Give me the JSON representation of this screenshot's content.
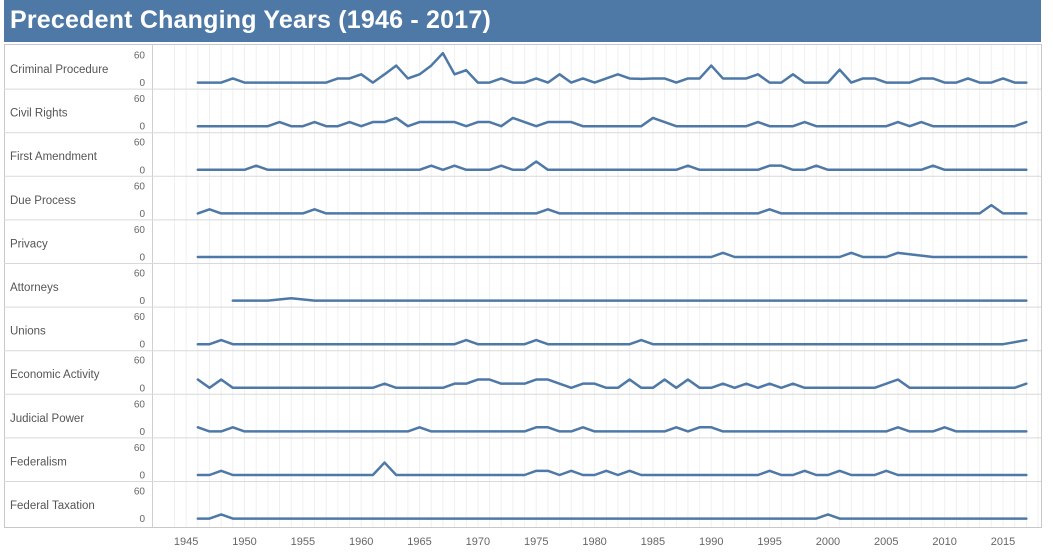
{
  "title": "Precedent Changing Years (1946 - 2017)",
  "chart_data": {
    "type": "line",
    "title": "Precedent Changing Years (1946 - 2017)",
    "x_ticks": [
      1945,
      1950,
      1955,
      1960,
      1965,
      1970,
      1975,
      1980,
      1985,
      1990,
      1995,
      2000,
      2005,
      2010,
      2015
    ],
    "x_range": [
      1944,
      2018
    ],
    "ylim": [
      0,
      60
    ],
    "y_ticks": [
      0,
      60
    ],
    "color": "#4e79a7",
    "grid": true,
    "series": [
      {
        "name": "Criminal Procedure",
        "x_range": [
          1946,
          2017
        ],
        "points": [
          [
            1946,
            0
          ],
          [
            1948,
            0
          ],
          [
            1949,
            9
          ],
          [
            1950,
            0
          ],
          [
            1956,
            0
          ],
          [
            1957,
            0
          ],
          [
            1958,
            9
          ],
          [
            1959,
            9
          ],
          [
            1960,
            18
          ],
          [
            1961,
            0
          ],
          [
            1962,
            18
          ],
          [
            1963,
            37
          ],
          [
            1964,
            9
          ],
          [
            1965,
            18
          ],
          [
            1966,
            37
          ],
          [
            1967,
            64
          ],
          [
            1968,
            18
          ],
          [
            1969,
            27
          ],
          [
            1970,
            0
          ],
          [
            1971,
            0
          ],
          [
            1972,
            9
          ],
          [
            1973,
            0
          ],
          [
            1974,
            0
          ],
          [
            1975,
            9
          ],
          [
            1976,
            0
          ],
          [
            1977,
            18
          ],
          [
            1978,
            0
          ],
          [
            1979,
            9
          ],
          [
            1980,
            0
          ],
          [
            1981,
            9
          ],
          [
            1982,
            18
          ],
          [
            1983,
            9
          ],
          [
            1984,
            8
          ],
          [
            1985,
            9
          ],
          [
            1986,
            9
          ],
          [
            1987,
            0
          ],
          [
            1988,
            9
          ],
          [
            1989,
            9
          ],
          [
            1990,
            37
          ],
          [
            1991,
            9
          ],
          [
            1992,
            9
          ],
          [
            1993,
            9
          ],
          [
            1994,
            18
          ],
          [
            1995,
            0
          ],
          [
            1996,
            0
          ],
          [
            1997,
            18
          ],
          [
            1998,
            0
          ],
          [
            1999,
            0
          ],
          [
            2000,
            0
          ],
          [
            2001,
            28
          ],
          [
            2002,
            0
          ],
          [
            2003,
            9
          ],
          [
            2004,
            9
          ],
          [
            2005,
            0
          ],
          [
            2006,
            0
          ],
          [
            2007,
            0
          ],
          [
            2008,
            9
          ],
          [
            2009,
            9
          ],
          [
            2010,
            0
          ],
          [
            2011,
            0
          ],
          [
            2012,
            9
          ],
          [
            2013,
            0
          ],
          [
            2014,
            0
          ],
          [
            2015,
            9
          ],
          [
            2016,
            0
          ],
          [
            2017,
            0
          ]
        ]
      },
      {
        "name": "Civil Rights",
        "x_range": [
          1946,
          2017
        ],
        "points": [
          [
            1946,
            0
          ],
          [
            1952,
            0
          ],
          [
            1953,
            9
          ],
          [
            1954,
            0
          ],
          [
            1955,
            0
          ],
          [
            1956,
            9
          ],
          [
            1957,
            0
          ],
          [
            1958,
            0
          ],
          [
            1959,
            9
          ],
          [
            1960,
            0
          ],
          [
            1961,
            9
          ],
          [
            1962,
            9
          ],
          [
            1963,
            18
          ],
          [
            1964,
            0
          ],
          [
            1965,
            9
          ],
          [
            1966,
            9
          ],
          [
            1967,
            9
          ],
          [
            1968,
            9
          ],
          [
            1969,
            0
          ],
          [
            1970,
            9
          ],
          [
            1971,
            9
          ],
          [
            1972,
            0
          ],
          [
            1973,
            18
          ],
          [
            1974,
            9
          ],
          [
            1975,
            0
          ],
          [
            1976,
            9
          ],
          [
            1977,
            9
          ],
          [
            1978,
            9
          ],
          [
            1979,
            0
          ],
          [
            1984,
            0
          ],
          [
            1985,
            18
          ],
          [
            1986,
            9
          ],
          [
            1987,
            0
          ],
          [
            1993,
            0
          ],
          [
            1994,
            9
          ],
          [
            1995,
            0
          ],
          [
            1997,
            0
          ],
          [
            1998,
            9
          ],
          [
            1999,
            0
          ],
          [
            2005,
            0
          ],
          [
            2006,
            9
          ],
          [
            2007,
            0
          ],
          [
            2008,
            9
          ],
          [
            2009,
            0
          ],
          [
            2016,
            0
          ],
          [
            2017,
            9
          ]
        ]
      },
      {
        "name": "First Amendment",
        "x_range": [
          1946,
          2017
        ],
        "points": [
          [
            1946,
            0
          ],
          [
            1950,
            0
          ],
          [
            1951,
            9
          ],
          [
            1952,
            0
          ],
          [
            1965,
            0
          ],
          [
            1966,
            9
          ],
          [
            1967,
            0
          ],
          [
            1968,
            9
          ],
          [
            1969,
            0
          ],
          [
            1971,
            0
          ],
          [
            1972,
            9
          ],
          [
            1973,
            0
          ],
          [
            1974,
            0
          ],
          [
            1975,
            18
          ],
          [
            1976,
            0
          ],
          [
            1987,
            0
          ],
          [
            1988,
            9
          ],
          [
            1989,
            0
          ],
          [
            1994,
            0
          ],
          [
            1995,
            9
          ],
          [
            1996,
            9
          ],
          [
            1997,
            0
          ],
          [
            1998,
            0
          ],
          [
            1999,
            9
          ],
          [
            2000,
            0
          ],
          [
            2008,
            0
          ],
          [
            2009,
            9
          ],
          [
            2010,
            0
          ],
          [
            2017,
            0
          ]
        ]
      },
      {
        "name": "Due Process",
        "x_range": [
          1946,
          2017
        ],
        "points": [
          [
            1946,
            0
          ],
          [
            1947,
            9
          ],
          [
            1948,
            0
          ],
          [
            1955,
            0
          ],
          [
            1956,
            9
          ],
          [
            1957,
            0
          ],
          [
            1975,
            0
          ],
          [
            1976,
            9
          ],
          [
            1977,
            0
          ],
          [
            1994,
            0
          ],
          [
            1995,
            9
          ],
          [
            1996,
            0
          ],
          [
            2013,
            0
          ],
          [
            2014,
            18
          ],
          [
            2015,
            0
          ],
          [
            2017,
            0
          ]
        ]
      },
      {
        "name": "Privacy",
        "x_range": [
          1946,
          2017
        ],
        "points": [
          [
            1946,
            0
          ],
          [
            1990,
            0
          ],
          [
            1991,
            9
          ],
          [
            1992,
            0
          ],
          [
            2001,
            0
          ],
          [
            2002,
            9
          ],
          [
            2003,
            0
          ],
          [
            2005,
            0
          ],
          [
            2006,
            9
          ],
          [
            2009,
            0
          ],
          [
            2017,
            0
          ]
        ]
      },
      {
        "name": "Attorneys",
        "x_range": [
          1949,
          2017
        ],
        "points": [
          [
            1949,
            0
          ],
          [
            1952,
            0
          ],
          [
            1954,
            5
          ],
          [
            1956,
            0
          ],
          [
            2017,
            0
          ]
        ]
      },
      {
        "name": "Unions",
        "x_range": [
          1946,
          2017
        ],
        "points": [
          [
            1946,
            0
          ],
          [
            1947,
            0
          ],
          [
            1948,
            9
          ],
          [
            1949,
            0
          ],
          [
            1968,
            0
          ],
          [
            1969,
            9
          ],
          [
            1970,
            0
          ],
          [
            1974,
            0
          ],
          [
            1975,
            9
          ],
          [
            1976,
            0
          ],
          [
            1983,
            0
          ],
          [
            1984,
            9
          ],
          [
            1985,
            0
          ],
          [
            2015,
            0
          ],
          [
            2017,
            9
          ]
        ]
      },
      {
        "name": "Economic Activity",
        "x_range": [
          1946,
          2017
        ],
        "points": [
          [
            1946,
            18
          ],
          [
            1947,
            0
          ],
          [
            1948,
            18
          ],
          [
            1949,
            0
          ],
          [
            1961,
            0
          ],
          [
            1962,
            9
          ],
          [
            1963,
            0
          ],
          [
            1967,
            0
          ],
          [
            1968,
            9
          ],
          [
            1969,
            9
          ],
          [
            1970,
            18
          ],
          [
            1971,
            18
          ],
          [
            1972,
            9
          ],
          [
            1973,
            9
          ],
          [
            1974,
            9
          ],
          [
            1975,
            18
          ],
          [
            1976,
            18
          ],
          [
            1977,
            9
          ],
          [
            1978,
            0
          ],
          [
            1979,
            9
          ],
          [
            1980,
            9
          ],
          [
            1981,
            0
          ],
          [
            1982,
            0
          ],
          [
            1983,
            18
          ],
          [
            1984,
            0
          ],
          [
            1985,
            0
          ],
          [
            1986,
            18
          ],
          [
            1987,
            0
          ],
          [
            1988,
            18
          ],
          [
            1989,
            0
          ],
          [
            1990,
            0
          ],
          [
            1991,
            9
          ],
          [
            1992,
            0
          ],
          [
            1993,
            9
          ],
          [
            1994,
            0
          ],
          [
            1995,
            9
          ],
          [
            1996,
            0
          ],
          [
            1997,
            9
          ],
          [
            1998,
            0
          ],
          [
            2004,
            0
          ],
          [
            2005,
            9
          ],
          [
            2006,
            18
          ],
          [
            2007,
            0
          ],
          [
            2016,
            0
          ],
          [
            2017,
            9
          ]
        ]
      },
      {
        "name": "Judicial Power",
        "x_range": [
          1946,
          2017
        ],
        "points": [
          [
            1946,
            9
          ],
          [
            1947,
            0
          ],
          [
            1948,
            0
          ],
          [
            1949,
            9
          ],
          [
            1950,
            0
          ],
          [
            1964,
            0
          ],
          [
            1965,
            9
          ],
          [
            1966,
            0
          ],
          [
            1974,
            0
          ],
          [
            1975,
            9
          ],
          [
            1976,
            9
          ],
          [
            1977,
            0
          ],
          [
            1978,
            0
          ],
          [
            1979,
            9
          ],
          [
            1980,
            0
          ],
          [
            1986,
            0
          ],
          [
            1987,
            9
          ],
          [
            1988,
            0
          ],
          [
            1989,
            9
          ],
          [
            1990,
            9
          ],
          [
            1991,
            0
          ],
          [
            2005,
            0
          ],
          [
            2006,
            9
          ],
          [
            2007,
            0
          ],
          [
            2009,
            0
          ],
          [
            2010,
            9
          ],
          [
            2011,
            0
          ],
          [
            2017,
            0
          ]
        ]
      },
      {
        "name": "Federalism",
        "x_range": [
          1946,
          2017
        ],
        "points": [
          [
            1946,
            0
          ],
          [
            1947,
            0
          ],
          [
            1948,
            9
          ],
          [
            1949,
            0
          ],
          [
            1961,
            0
          ],
          [
            1962,
            27
          ],
          [
            1963,
            0
          ],
          [
            1974,
            0
          ],
          [
            1975,
            9
          ],
          [
            1976,
            9
          ],
          [
            1977,
            0
          ],
          [
            1978,
            9
          ],
          [
            1979,
            0
          ],
          [
            1980,
            0
          ],
          [
            1981,
            9
          ],
          [
            1982,
            0
          ],
          [
            1983,
            9
          ],
          [
            1984,
            0
          ],
          [
            1994,
            0
          ],
          [
            1995,
            9
          ],
          [
            1996,
            0
          ],
          [
            1997,
            0
          ],
          [
            1998,
            9
          ],
          [
            1999,
            0
          ],
          [
            2000,
            0
          ],
          [
            2001,
            9
          ],
          [
            2002,
            0
          ],
          [
            2004,
            0
          ],
          [
            2005,
            9
          ],
          [
            2006,
            0
          ],
          [
            2017,
            0
          ]
        ]
      },
      {
        "name": "Federal Taxation",
        "x_range": [
          1946,
          2017
        ],
        "points": [
          [
            1946,
            0
          ],
          [
            1947,
            0
          ],
          [
            1948,
            9
          ],
          [
            1949,
            0
          ],
          [
            1999,
            0
          ],
          [
            2000,
            9
          ],
          [
            2001,
            0
          ],
          [
            2017,
            0
          ]
        ]
      }
    ]
  }
}
